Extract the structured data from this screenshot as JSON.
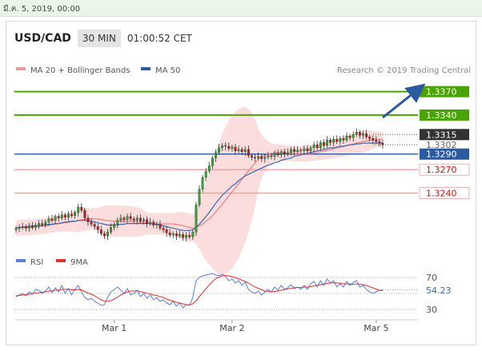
{
  "date_label": "มี.ค. 5, 2019, 00:00",
  "header": {
    "symbol": "USD/CAD",
    "timeframe": "30 MIN",
    "clock": "01:00:52 CET"
  },
  "colors": {
    "green": "#4aa400",
    "darkgreen": "#3c8a00",
    "red": "#d01010",
    "redline": "#f2a0a0",
    "blue": "#2c5aa0",
    "candle_up": "#33a433",
    "candle_down": "#b51f1f",
    "ma20": "#f08080",
    "ma50": "#3a6ab0",
    "rsi": "#5b7fd6",
    "rsi_ma": "#e03030"
  },
  "chart_data": [
    {
      "type": "candlestick",
      "legend": [
        {
          "name": "MA 20 + Bollinger Bands",
          "color": "#f29a9a"
        },
        {
          "name": "MA 50",
          "color": "#2c5aa0"
        }
      ],
      "credit": "Research © 2019 Trading Central",
      "ylim": [
        1.3178,
        1.3385
      ],
      "xlabels": [
        {
          "label": "Mar 1",
          "index": 30
        },
        {
          "label": "Mar 2",
          "index": 66
        },
        {
          "label": "Mar 5",
          "index": 110
        }
      ],
      "levels": [
        {
          "value": 1.337,
          "label": "1.3370",
          "kind": "resistance",
          "color": "#4aa400"
        },
        {
          "value": 1.334,
          "label": "1.3340",
          "kind": "resistance",
          "color": "#4aa400"
        },
        {
          "value": 1.3315,
          "label": "1.3315",
          "kind": "last",
          "color": "#333333"
        },
        {
          "value": 1.3302,
          "label": "1.3302",
          "kind": "current",
          "color": "#888888"
        },
        {
          "value": 1.329,
          "label": "1.3290",
          "kind": "pivot",
          "color": "#2c5aa0"
        },
        {
          "value": 1.327,
          "label": "1.3270",
          "kind": "support",
          "color": "#d01010"
        },
        {
          "value": 1.324,
          "label": "1.3240",
          "kind": "support",
          "color": "#d01010"
        }
      ],
      "close": [
        1.3195,
        1.3196,
        1.3197,
        1.3195,
        1.3198,
        1.3196,
        1.3199,
        1.3201,
        1.32,
        1.3203,
        1.3207,
        1.3205,
        1.321,
        1.3208,
        1.3212,
        1.3209,
        1.3213,
        1.3211,
        1.3215,
        1.3222,
        1.3218,
        1.3208,
        1.3203,
        1.32,
        1.3197,
        1.3193,
        1.3188,
        1.3185,
        1.319,
        1.3196,
        1.32,
        1.3205,
        1.3208,
        1.3206,
        1.321,
        1.3207,
        1.3205,
        1.3208,
        1.3204,
        1.3206,
        1.3201,
        1.3203,
        1.3199,
        1.32,
        1.3195,
        1.3193,
        1.3189,
        1.3186,
        1.3188,
        1.3185,
        1.3187,
        1.3183,
        1.3186,
        1.3184,
        1.319,
        1.3225,
        1.3245,
        1.326,
        1.3268,
        1.3275,
        1.3285,
        1.3292,
        1.3298,
        1.3301,
        1.33,
        1.3297,
        1.3299,
        1.3294,
        1.3296,
        1.3293,
        1.3296,
        1.3288,
        1.3286,
        1.3285,
        1.3287,
        1.3284,
        1.3286,
        1.3288,
        1.3287,
        1.3291,
        1.3289,
        1.3293,
        1.329,
        1.3292,
        1.3296,
        1.3293,
        1.3295,
        1.3294,
        1.3297,
        1.3294,
        1.3298,
        1.3302,
        1.3298,
        1.3305,
        1.3301,
        1.3308,
        1.3305,
        1.3309,
        1.3306,
        1.331,
        1.3308,
        1.3313,
        1.3311,
        1.3315,
        1.3318,
        1.3314,
        1.3316,
        1.3312,
        1.331,
        1.3308,
        1.3306,
        1.3304,
        1.3302
      ],
      "ma50": [
        1.3195,
        1.3196,
        1.3196,
        1.3197,
        1.3197,
        1.3198,
        1.3198,
        1.3198,
        1.3199,
        1.3199,
        1.32,
        1.32,
        1.3201,
        1.3201,
        1.3202,
        1.3203,
        1.3203,
        1.3204,
        1.3204,
        1.3205,
        1.3205,
        1.3205,
        1.3205,
        1.3204,
        1.3203,
        1.3202,
        1.3201,
        1.32,
        1.3199,
        1.3199,
        1.3199,
        1.3199,
        1.32,
        1.32,
        1.3201,
        1.3201,
        1.3201,
        1.3201,
        1.3201,
        1.3201,
        1.3201,
        1.3201,
        1.32,
        1.32,
        1.3199,
        1.3198,
        1.3197,
        1.3196,
        1.3195,
        1.3194,
        1.3193,
        1.3192,
        1.3192,
        1.3192,
        1.3193,
        1.3196,
        1.32,
        1.3205,
        1.321,
        1.3215,
        1.3221,
        1.3227,
        1.3232,
        1.3237,
        1.3241,
        1.3245,
        1.3249,
        1.3252,
        1.3256,
        1.3259,
        1.3262,
        1.3264,
        1.3266,
        1.3268,
        1.327,
        1.3272,
        1.3274,
        1.3276,
        1.3277,
        1.3279,
        1.328,
        1.3282,
        1.3283,
        1.3284,
        1.3285,
        1.3287,
        1.3288,
        1.3289,
        1.329,
        1.3291,
        1.3292,
        1.3293,
        1.3294,
        1.3295,
        1.3296,
        1.3297,
        1.3298,
        1.3298,
        1.3299,
        1.33,
        1.33,
        1.3301,
        1.3302,
        1.3302,
        1.3303,
        1.3303,
        1.3304,
        1.3304,
        1.3304,
        1.3304,
        1.3304,
        1.3304,
        1.3304
      ]
    },
    {
      "type": "line",
      "legend": [
        {
          "name": "RSI",
          "color": "#5b7fd6"
        },
        {
          "name": "9MA",
          "color": "#e03030"
        }
      ],
      "ylim": [
        20,
        80
      ],
      "levels": [
        {
          "value": 70,
          "label": "70"
        },
        {
          "value": 30,
          "label": "30"
        }
      ],
      "last_value": {
        "value": 54.23,
        "label": "54.23"
      },
      "rsi": [
        46,
        48,
        50,
        47,
        52,
        49,
        55,
        54,
        50,
        53,
        58,
        51,
        57,
        52,
        60,
        50,
        56,
        48,
        55,
        60,
        52,
        45,
        42,
        44,
        40,
        38,
        35,
        36,
        45,
        52,
        55,
        58,
        54,
        50,
        56,
        48,
        50,
        54,
        46,
        50,
        44,
        48,
        42,
        45,
        40,
        42,
        38,
        36,
        40,
        34,
        38,
        32,
        36,
        35,
        45,
        66,
        70,
        72,
        73,
        74,
        75,
        73,
        72,
        74,
        71,
        66,
        68,
        63,
        66,
        60,
        64,
        55,
        52,
        50,
        53,
        48,
        52,
        55,
        52,
        58,
        54,
        60,
        55,
        57,
        61,
        56,
        58,
        55,
        60,
        55,
        62,
        65,
        58,
        66,
        60,
        68,
        63,
        66,
        58,
        62,
        58,
        65,
        60,
        64,
        66,
        58,
        60,
        55,
        52,
        50,
        52,
        54,
        54.23
      ],
      "rsi_ma": [
        47,
        47.5,
        48,
        48.5,
        49,
        49.5,
        50.5,
        51,
        51.5,
        52,
        53,
        53,
        54,
        54,
        55,
        55,
        55.5,
        54.5,
        54.5,
        55,
        54.5,
        52.5,
        50.5,
        49,
        47,
        44.5,
        42,
        40.5,
        40,
        41,
        43,
        45.5,
        48,
        50,
        52,
        53,
        53,
        53.5,
        52,
        51.5,
        50,
        49.5,
        48,
        47.5,
        46,
        45,
        43,
        41.5,
        40.5,
        39,
        38,
        37,
        36,
        35.5,
        37,
        41,
        46,
        51,
        56,
        60.5,
        65,
        68.5,
        70.5,
        72,
        72.5,
        72,
        71,
        69.5,
        68.5,
        66.5,
        65,
        63,
        60.5,
        58,
        56.5,
        54.5,
        53,
        52.5,
        52,
        52.5,
        53,
        54,
        55,
        55.5,
        56.5,
        57,
        57.5,
        57.5,
        58,
        58,
        58.5,
        59.5,
        60,
        61,
        61.5,
        62.5,
        63,
        63.5,
        63,
        63,
        62,
        62,
        61.5,
        61.5,
        62,
        61.5,
        61,
        60,
        58.5,
        57,
        55.5,
        54,
        53.5
      ]
    }
  ]
}
